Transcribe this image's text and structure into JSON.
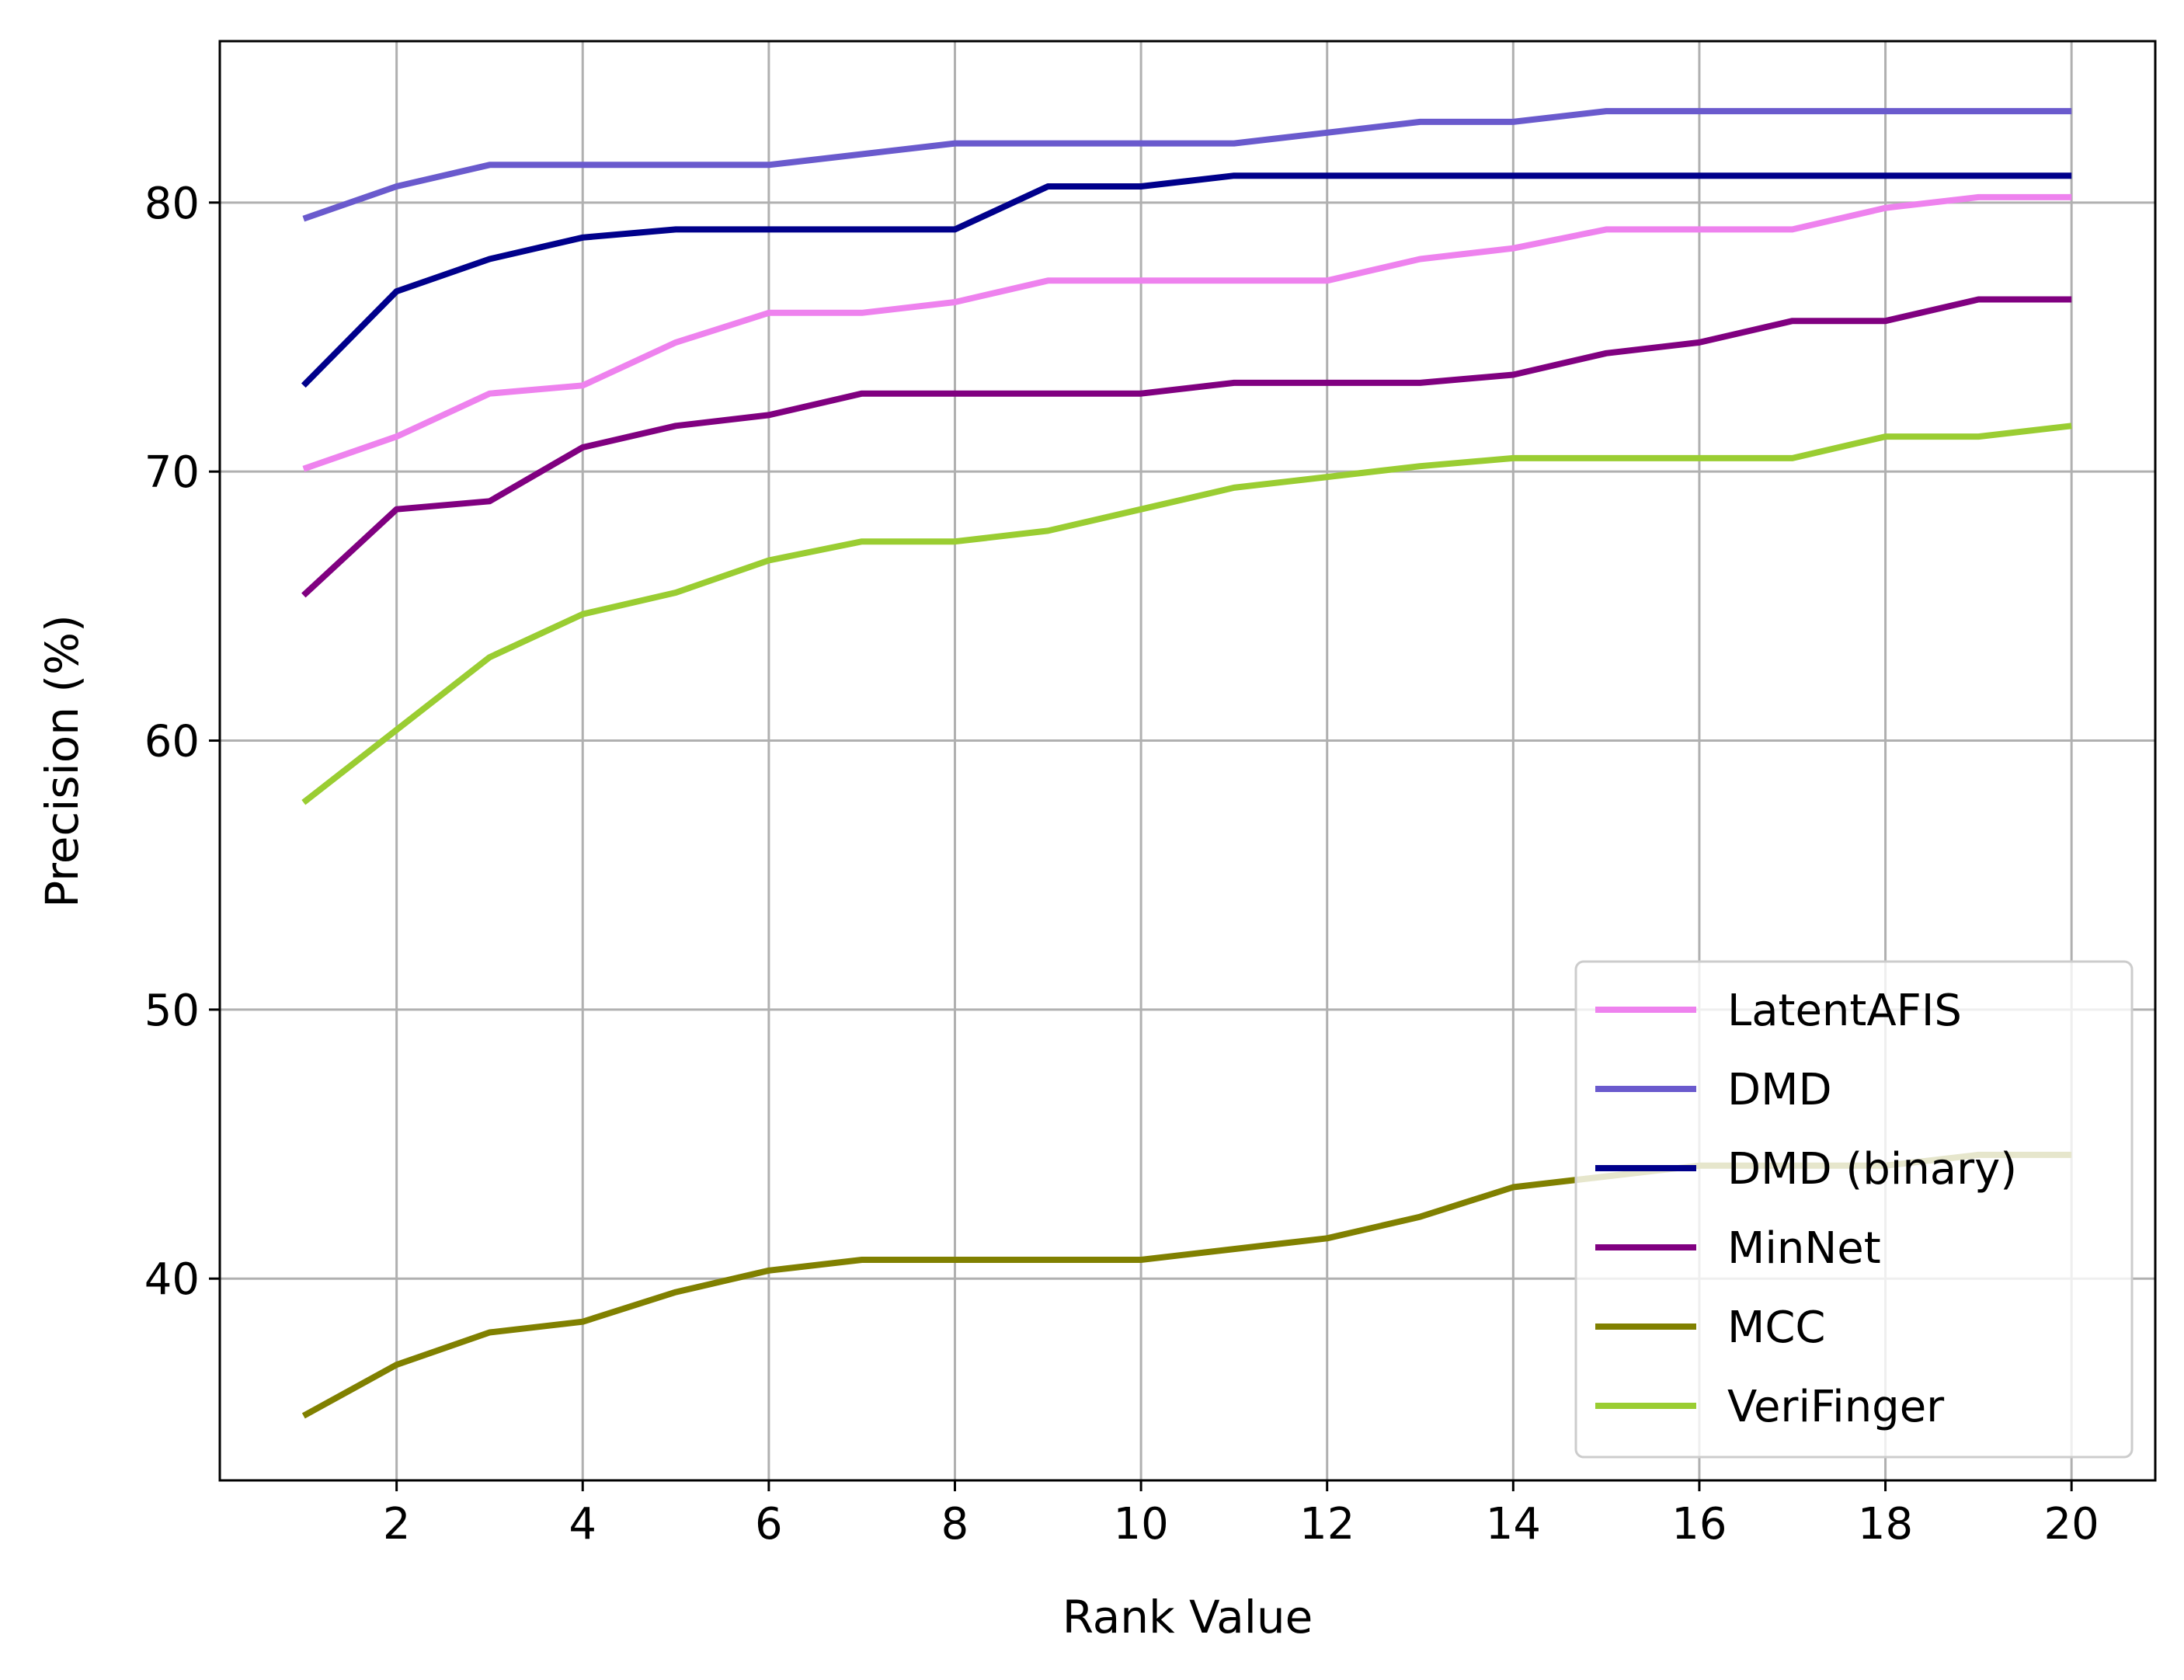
{
  "chart_data": {
    "type": "line",
    "title": "",
    "xlabel": "Rank Value",
    "ylabel": "Precision (%)",
    "xlim": [
      0.1,
      20.9
    ],
    "ylim": [
      32.5,
      86.0
    ],
    "xticks": [
      2,
      4,
      6,
      8,
      10,
      12,
      14,
      16,
      18,
      20
    ],
    "yticks": [
      40,
      50,
      60,
      70,
      80
    ],
    "grid": true,
    "legend_position": "lower-right",
    "x": [
      1,
      2,
      3,
      4,
      5,
      6,
      7,
      8,
      9,
      10,
      11,
      12,
      13,
      14,
      15,
      16,
      17,
      18,
      19,
      20
    ],
    "series": [
      {
        "name": "LatentAFIS",
        "color": "#ee82ee",
        "values": [
          70.1,
          71.3,
          72.9,
          73.2,
          74.8,
          75.9,
          75.9,
          76.3,
          77.1,
          77.1,
          77.1,
          77.1,
          77.9,
          78.3,
          79.0,
          79.0,
          79.0,
          79.8,
          80.2,
          80.2
        ]
      },
      {
        "name": "DMD",
        "color": "#6a5acd",
        "values": [
          79.4,
          80.6,
          81.4,
          81.4,
          81.4,
          81.4,
          81.8,
          82.2,
          82.2,
          82.2,
          82.2,
          82.6,
          83.0,
          83.0,
          83.4,
          83.4,
          83.4,
          83.4,
          83.4,
          83.4
        ]
      },
      {
        "name": "DMD (binary)",
        "color": "#00008b",
        "values": [
          73.2,
          76.7,
          77.9,
          78.7,
          79.0,
          79.0,
          79.0,
          79.0,
          80.6,
          80.6,
          81.0,
          81.0,
          81.0,
          81.0,
          81.0,
          81.0,
          81.0,
          81.0,
          81.0,
          81.0
        ]
      },
      {
        "name": "MinNet",
        "color": "#800080",
        "values": [
          65.4,
          68.6,
          68.9,
          70.9,
          71.7,
          72.1,
          72.9,
          72.9,
          72.9,
          72.9,
          73.3,
          73.3,
          73.3,
          73.6,
          74.4,
          74.8,
          75.6,
          75.6,
          76.4,
          76.4
        ]
      },
      {
        "name": "MCC",
        "color": "#808000",
        "values": [
          34.9,
          36.8,
          38.0,
          38.4,
          39.5,
          40.3,
          40.7,
          40.7,
          40.7,
          40.7,
          41.1,
          41.5,
          42.3,
          43.4,
          43.8,
          44.2,
          44.2,
          44.2,
          44.6,
          44.6
        ]
      },
      {
        "name": "VeriFinger",
        "color": "#9acd32",
        "values": [
          57.7,
          60.4,
          63.1,
          64.7,
          65.5,
          66.7,
          67.4,
          67.4,
          67.8,
          68.6,
          69.4,
          69.8,
          70.2,
          70.5,
          70.5,
          70.5,
          70.5,
          71.3,
          71.3,
          71.7
        ]
      }
    ]
  }
}
